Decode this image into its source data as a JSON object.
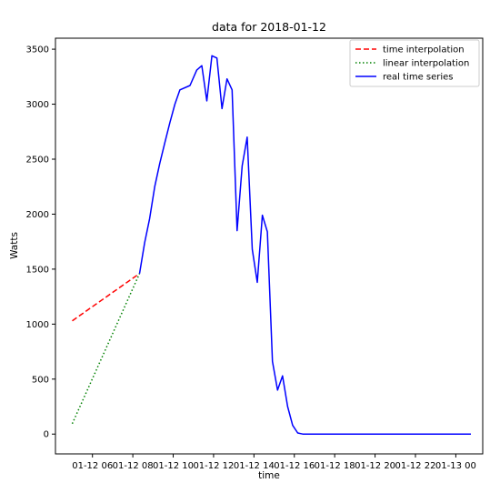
{
  "chart_data": {
    "type": "line",
    "title": "data for 2018-01-12",
    "xlabel": "time",
    "ylabel": "Watts",
    "xlim": [
      "2018-01-12 04:10",
      "2018-01-13 01:20"
    ],
    "ylim": [
      -180,
      3600
    ],
    "grid": false,
    "legend_position": "top-right",
    "x_ticks": [
      {
        "label": "01-12 06",
        "t": "2018-01-12 06:00"
      },
      {
        "label": "01-12 08",
        "t": "2018-01-12 08:00"
      },
      {
        "label": "01-12 10",
        "t": "2018-01-12 10:00"
      },
      {
        "label": "01-12 12",
        "t": "2018-01-12 12:00"
      },
      {
        "label": "01-12 14",
        "t": "2018-01-12 14:00"
      },
      {
        "label": "01-12 16",
        "t": "2018-01-12 16:00"
      },
      {
        "label": "01-12 18",
        "t": "2018-01-12 18:00"
      },
      {
        "label": "01-12 20",
        "t": "2018-01-12 20:00"
      },
      {
        "label": "01-12 22",
        "t": "2018-01-12 22:00"
      },
      {
        "label": "01-13 00",
        "t": "2018-01-13 00:00"
      }
    ],
    "y_ticks": [
      0,
      500,
      1000,
      1500,
      2000,
      2500,
      3000,
      3500
    ],
    "series": [
      {
        "name": "time interpolation",
        "color": "#ff0000",
        "style": "dashed",
        "points": [
          [
            "2018-01-12 05:00",
            1030
          ],
          [
            "2018-01-12 08:20",
            1460
          ]
        ]
      },
      {
        "name": "linear interpolation",
        "color": "#008000",
        "style": "dotted",
        "points": [
          [
            "2018-01-12 05:00",
            95
          ],
          [
            "2018-01-12 08:20",
            1460
          ]
        ]
      },
      {
        "name": "real time series",
        "color": "#0000ff",
        "style": "solid",
        "points": [
          [
            "2018-01-12 08:20",
            1460
          ],
          [
            "2018-01-12 08:35",
            1740
          ],
          [
            "2018-01-12 08:50",
            1960
          ],
          [
            "2018-01-12 09:05",
            2250
          ],
          [
            "2018-01-12 09:20",
            2460
          ],
          [
            "2018-01-12 09:35",
            2650
          ],
          [
            "2018-01-12 09:50",
            2830
          ],
          [
            "2018-01-12 10:05",
            3000
          ],
          [
            "2018-01-12 10:20",
            3130
          ],
          [
            "2018-01-12 10:50",
            3170
          ],
          [
            "2018-01-12 11:10",
            3310
          ],
          [
            "2018-01-12 11:25",
            3350
          ],
          [
            "2018-01-12 11:40",
            3030
          ],
          [
            "2018-01-12 11:55",
            3440
          ],
          [
            "2018-01-12 12:10",
            3420
          ],
          [
            "2018-01-12 12:25",
            2960
          ],
          [
            "2018-01-12 12:40",
            3230
          ],
          [
            "2018-01-12 12:55",
            3130
          ],
          [
            "2018-01-12 13:10",
            1850
          ],
          [
            "2018-01-12 13:25",
            2440
          ],
          [
            "2018-01-12 13:40",
            2700
          ],
          [
            "2018-01-12 13:55",
            1680
          ],
          [
            "2018-01-12 14:10",
            1380
          ],
          [
            "2018-01-12 14:25",
            1990
          ],
          [
            "2018-01-12 14:40",
            1840
          ],
          [
            "2018-01-12 14:55",
            660
          ],
          [
            "2018-01-12 15:10",
            400
          ],
          [
            "2018-01-12 15:25",
            530
          ],
          [
            "2018-01-12 15:40",
            250
          ],
          [
            "2018-01-12 15:55",
            80
          ],
          [
            "2018-01-12 16:10",
            10
          ],
          [
            "2018-01-12 16:25",
            0
          ],
          [
            "2018-01-13 00:45",
            0
          ]
        ]
      }
    ]
  }
}
